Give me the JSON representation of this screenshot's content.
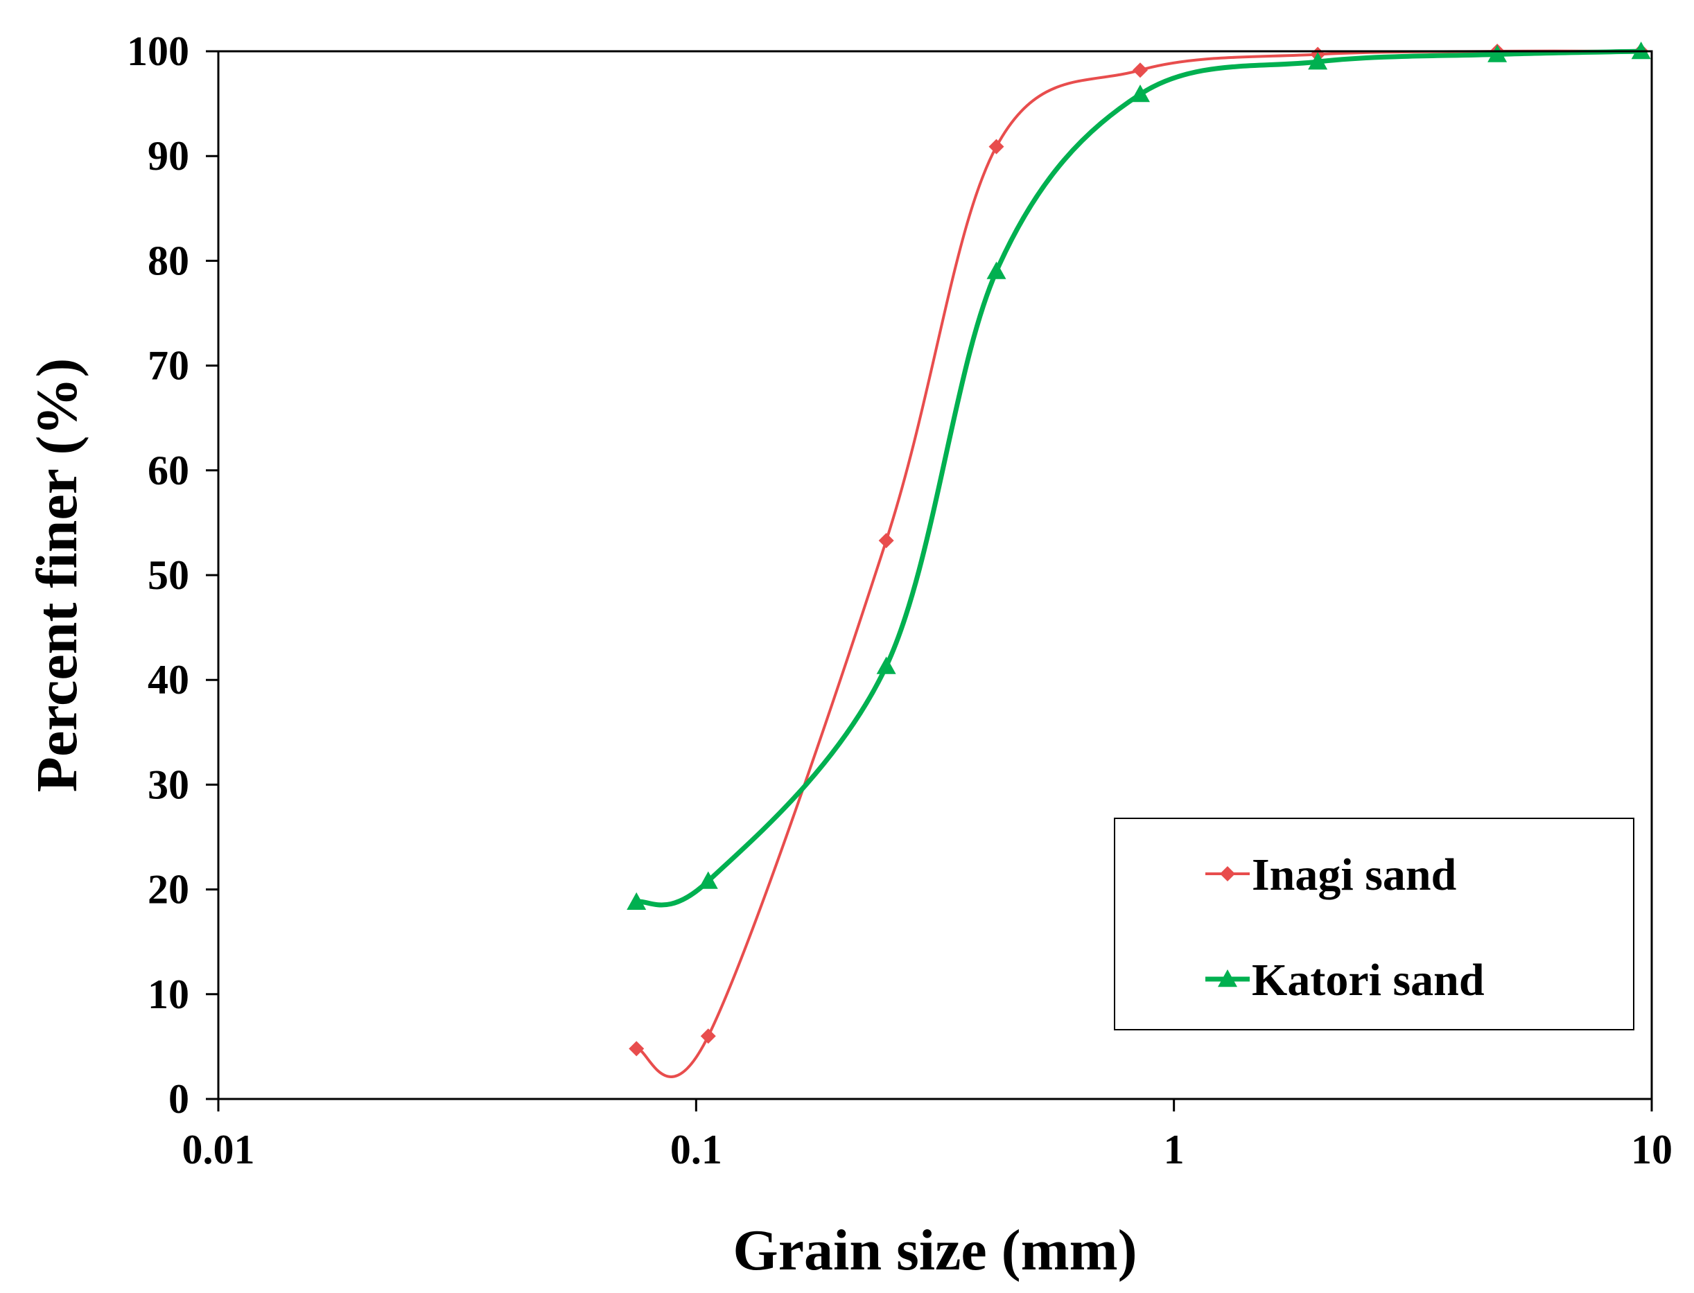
{
  "chart_data": {
    "type": "line",
    "title": "",
    "xlabel": "Grain size (mm)",
    "ylabel": "Percent finer (%)",
    "xscale": "log",
    "xlim": [
      0.01,
      10
    ],
    "ylim": [
      0,
      100
    ],
    "xticks": [
      {
        "value": 0.01,
        "label": "0.01"
      },
      {
        "value": 0.1,
        "label": "0.1"
      },
      {
        "value": 1,
        "label": "1"
      },
      {
        "value": 10,
        "label": "10"
      }
    ],
    "yticks": [
      {
        "value": 0,
        "label": "0"
      },
      {
        "value": 10,
        "label": "10"
      },
      {
        "value": 20,
        "label": "20"
      },
      {
        "value": 30,
        "label": "30"
      },
      {
        "value": 40,
        "label": "40"
      },
      {
        "value": 50,
        "label": "50"
      },
      {
        "value": 60,
        "label": "60"
      },
      {
        "value": 70,
        "label": "70"
      },
      {
        "value": 80,
        "label": "80"
      },
      {
        "value": 90,
        "label": "90"
      },
      {
        "value": 100,
        "label": "100"
      }
    ],
    "grid": false,
    "legend": "bottom-right",
    "series": [
      {
        "name": "Inagi sand",
        "color": "#e84d4d",
        "marker": "diamond",
        "x": [
          0.075,
          0.106,
          0.25,
          0.425,
          0.85,
          2.0,
          4.75,
          9.5
        ],
        "y": [
          4.8,
          6.0,
          53.3,
          90.9,
          98.2,
          99.7,
          100,
          100
        ]
      },
      {
        "name": "Katori sand",
        "color": "#00b050",
        "marker": "triangle",
        "x": [
          0.075,
          0.106,
          0.25,
          0.425,
          0.85,
          2.0,
          4.75,
          9.5
        ],
        "y": [
          18.8,
          20.8,
          41.3,
          79.0,
          95.9,
          99.0,
          99.7,
          100
        ]
      }
    ]
  }
}
